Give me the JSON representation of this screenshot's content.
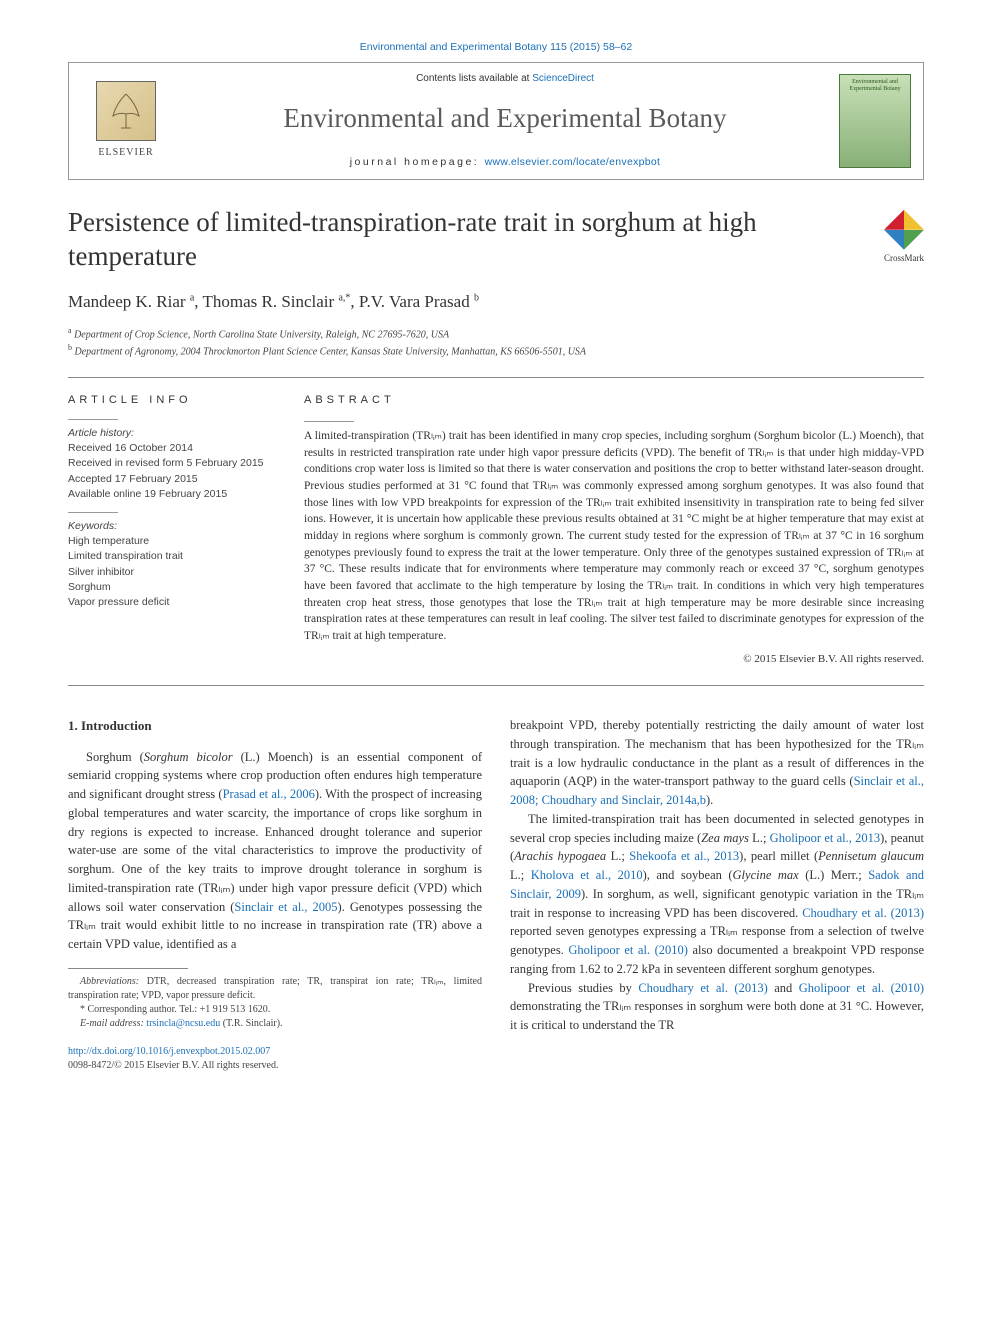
{
  "header": {
    "citation_link": "Environmental and Experimental Botany 115 (2015) 58–62",
    "contents_prefix": "Contents lists available at ",
    "contents_link": "ScienceDirect",
    "journal_title": "Environmental and Experimental Botany",
    "homepage_prefix": "journal homepage: ",
    "homepage_link": "www.elsevier.com/locate/envexpbot",
    "elsevier_label": "ELSEVIER",
    "cover_text_1": "Environmental and",
    "cover_text_2": "Experimental Botany"
  },
  "crossmark": {
    "label": "CrossMark"
  },
  "article": {
    "title": "Persistence of limited-transpiration-rate trait in sorghum at high temperature",
    "authors_html": "Mandeep K. Riar <sup>a</sup>, Thomas R. Sinclair <sup>a,*</sup>, P.V. Vara Prasad <sup>b</sup>",
    "affiliations": [
      {
        "sup": "a",
        "text": "Department of Crop Science, North Carolina State University, Raleigh, NC 27695-7620, USA"
      },
      {
        "sup": "b",
        "text": "Department of Agronomy, 2004 Throckmorton Plant Science Center, Kansas State University, Manhattan, KS 66506-5501, USA"
      }
    ]
  },
  "article_info": {
    "heading": "ARTICLE INFO",
    "history_label": "Article history:",
    "history": [
      "Received 16 October 2014",
      "Received in revised form 5 February 2015",
      "Accepted 17 February 2015",
      "Available online 19 February 2015"
    ],
    "keywords_label": "Keywords:",
    "keywords": [
      "High temperature",
      "Limited transpiration trait",
      "Silver inhibitor",
      "Sorghum",
      "Vapor pressure deficit"
    ]
  },
  "abstract": {
    "heading": "ABSTRACT",
    "text": "A limited-transpiration (TRₗᵢₘ) trait has been identified in many crop species, including sorghum (Sorghum bicolor (L.) Moench), that results in restricted transpiration rate under high vapor pressure deficits (VPD). The benefit of TRₗᵢₘ is that under high midday-VPD conditions crop water loss is limited so that there is water conservation and positions the crop to better withstand later-season drought. Previous studies performed at 31 °C found that TRₗᵢₘ was commonly expressed among sorghum genotypes. It was also found that those lines with low VPD breakpoints for expression of the TRₗᵢₘ trait exhibited insensitivity in transpiration rate to being fed silver ions. However, it is uncertain how applicable these previous results obtained at 31 °C might be at higher temperature that may exist at midday in regions where sorghum is commonly grown. The current study tested for the expression of TRₗᵢₘ at 37 °C in 16 sorghum genotypes previously found to express the trait at the lower temperature. Only three of the genotypes sustained expression of TRₗᵢₘ at 37 °C. These results indicate that for environments where temperature may commonly reach or exceed 37 °C, sorghum genotypes have been favored that acclimate to the high temperature by losing the TRₗᵢₘ trait. In conditions in which very high temperatures threaten crop heat stress, those genotypes that lose the TRₗᵢₘ trait at high temperature may be more desirable since increasing transpiration rates at these temperatures can result in leaf cooling. The silver test failed to discriminate genotypes for expression of the TRₗᵢₘ trait at high temperature.",
    "copyright": "© 2015 Elsevier B.V. All rights reserved."
  },
  "body": {
    "section_heading": "1. Introduction",
    "col1_p1_a": "Sorghum (",
    "col1_p1_species": "Sorghum bicolor",
    "col1_p1_b": " (L.) Moench) is an essential component of semiarid cropping systems where crop production often endures high temperature and significant drought stress (",
    "col1_p1_ref1": "Prasad et al., 2006",
    "col1_p1_c": "). With the prospect of increasing global temperatures and water scarcity, the importance of crops like sorghum in dry regions is expected to increase. Enhanced drought tolerance and superior water-use are some of the vital characteristics to improve the productivity of sorghum. One of the key traits to improve drought tolerance in sorghum is limited-transpiration rate (TRₗᵢₘ) under high vapor pressure deficit (VPD) which allows soil water conservation (",
    "col1_p1_ref2": "Sinclair et al., 2005",
    "col1_p1_d": "). Genotypes possessing the TRₗᵢₘ trait would exhibit little to no increase in transpiration rate (TR) above a certain VPD value, identified as a",
    "col2_p1_a": "breakpoint VPD, thereby potentially restricting the daily amount of water lost through transpiration. The mechanism that has been hypothesized for the TRₗᵢₘ trait is a low hydraulic conductance in the plant as a result of differences in the aquaporin (AQP) in the water-transport pathway to the guard cells (",
    "col2_p1_ref1": "Sinclair et al., 2008; Choudhary and Sinclair, 2014a,b",
    "col2_p1_b": ").",
    "col2_p2_a": "The limited-transpiration trait has been documented in selected genotypes in several crop species including maize (",
    "col2_p2_sp1": "Zea mays",
    "col2_p2_b": " L.; ",
    "col2_p2_ref1": "Gholipoor et al., 2013",
    "col2_p2_c": "), peanut (",
    "col2_p2_sp2": "Arachis hypogaea",
    "col2_p2_d": " L.; ",
    "col2_p2_ref2": "Shekoofa et al., 2013",
    "col2_p2_e": "), pearl millet (",
    "col2_p2_sp3": "Pennisetum glaucum",
    "col2_p2_f": " L.; ",
    "col2_p2_ref3": "Kholova et al., 2010",
    "col2_p2_g": "), and soybean (",
    "col2_p2_sp4": "Glycine max",
    "col2_p2_h": " (L.) Merr.; ",
    "col2_p2_ref4": "Sadok and Sinclair, 2009",
    "col2_p2_i": "). In sorghum, as well, significant genotypic variation in the TRₗᵢₘ trait in response to increasing VPD has been discovered. ",
    "col2_p2_ref5": "Choudhary et al. (2013)",
    "col2_p2_j": " reported seven genotypes expressing a TRₗᵢₘ response from a selection of twelve genotypes. ",
    "col2_p2_ref6": "Gholipoor et al. (2010)",
    "col2_p2_k": " also documented a breakpoint VPD response ranging from 1.62 to 2.72 kPa in seventeen different sorghum genotypes.",
    "col2_p3_a": "Previous studies by ",
    "col2_p3_ref1": "Choudhary et al. (2013)",
    "col2_p3_b": " and ",
    "col2_p3_ref2": "Gholipoor et al. (2010)",
    "col2_p3_c": " demonstrating the TRₗᵢₘ responses in sorghum were both done at 31 °C. However, it is critical to understand the TR"
  },
  "footnotes": {
    "abbrev_label": "Abbreviations:",
    "abbrev_text": " DTR, decreased transpiration rate; TR, transpirat ion rate; TRₗᵢₘ, limited transpiration rate; VPD, vapor pressure deficit.",
    "corr_label": "* Corresponding author. Tel.: +1 919 513 1620.",
    "email_label": "E-mail address: ",
    "email": "trsincla@ncsu.edu",
    "email_suffix": " (T.R. Sinclair)."
  },
  "doi": {
    "link": "http://dx.doi.org/10.1016/j.envexpbot.2015.02.007",
    "issn": "0098-8472/",
    "copyright": "© 2015 Elsevier B.V. All rights reserved."
  },
  "colors": {
    "link": "#1a6fb8",
    "text": "#333333",
    "crossmark_tl": "#d02030",
    "crossmark_tr": "#f0c030",
    "crossmark_bl": "#3080c0",
    "crossmark_br": "#50a050"
  }
}
